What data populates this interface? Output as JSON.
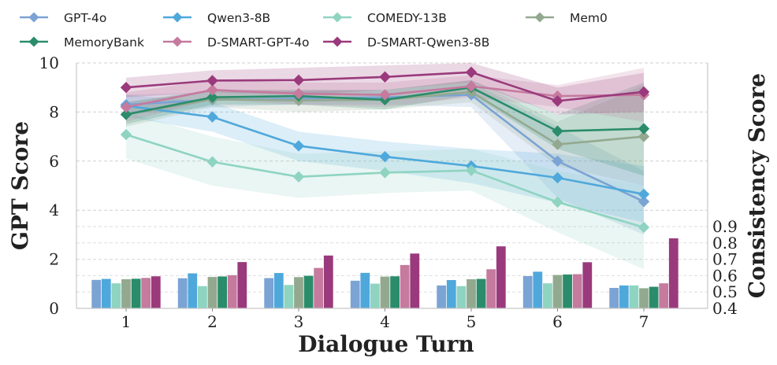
{
  "chart_data": {
    "type": "line+bar",
    "xlabel": "Dialogue Turn",
    "ylabel": "GPT Score",
    "y2label": "Consistency Score",
    "x": [
      1,
      2,
      3,
      4,
      5,
      6,
      7
    ],
    "ylim": [
      0,
      10
    ],
    "yticks": [
      0,
      2,
      4,
      6,
      8,
      10
    ],
    "y2lim": [
      0.4,
      0.9
    ],
    "y2ticks": [
      0.4,
      0.5,
      0.6,
      0.7,
      0.8,
      0.9
    ],
    "grid": true,
    "legend_position": "top",
    "series": [
      {
        "name": "GPT-4o",
        "color": "#7ba3d4",
        "gpt": [
          8.3,
          8.5,
          8.55,
          8.6,
          8.7,
          6.0,
          4.35
        ],
        "band": [
          [
            7.9,
            8.7
          ],
          [
            8.2,
            8.8
          ],
          [
            8.3,
            8.85
          ],
          [
            8.3,
            8.9
          ],
          [
            8.2,
            9.2
          ],
          [
            4.5,
            7.4
          ],
          [
            3.0,
            5.6
          ]
        ],
        "consistency": [
          0.574,
          0.584,
          0.585,
          0.569,
          0.54,
          0.597,
          0.525
        ]
      },
      {
        "name": "Qwen3-8B",
        "color": "#4fa8db",
        "gpt": [
          8.25,
          7.8,
          6.62,
          6.18,
          5.8,
          5.32,
          4.65
        ],
        "band": [
          [
            7.8,
            8.7
          ],
          [
            7.2,
            8.4
          ],
          [
            6.0,
            7.2
          ],
          [
            5.6,
            6.8
          ],
          [
            5.1,
            6.5
          ],
          [
            4.3,
            6.3
          ],
          [
            3.5,
            5.8
          ]
        ],
        "consistency": [
          0.58,
          0.614,
          0.616,
          0.617,
          0.573,
          0.624,
          0.54
        ]
      },
      {
        "name": "COMEDY-13B",
        "color": "#8fd4c1",
        "gpt": [
          7.08,
          5.97,
          5.36,
          5.53,
          5.62,
          4.33,
          3.3
        ],
        "band": [
          [
            6.1,
            8.0
          ],
          [
            5.0,
            7.0
          ],
          [
            4.5,
            6.3
          ],
          [
            4.7,
            6.4
          ],
          [
            4.8,
            6.5
          ],
          [
            3.1,
            5.6
          ],
          [
            1.6,
            5.0
          ]
        ],
        "consistency": [
          0.553,
          0.536,
          0.543,
          0.551,
          0.536,
          0.553,
          0.54
        ]
      },
      {
        "name": "Mem0",
        "color": "#93a98f",
        "gpt": [
          7.9,
          8.52,
          8.47,
          8.5,
          8.82,
          6.68,
          7.0
        ],
        "band": [
          [
            7.4,
            8.4
          ],
          [
            8.2,
            8.9
          ],
          [
            8.0,
            8.9
          ],
          [
            8.1,
            8.9
          ],
          [
            8.4,
            9.3
          ],
          [
            5.8,
            7.6
          ],
          [
            5.0,
            9.1
          ]
        ],
        "consistency": [
          0.578,
          0.592,
          0.591,
          0.594,
          0.578,
          0.604,
          0.523
        ]
      },
      {
        "name": "MemoryBank",
        "color": "#2a8c6a",
        "gpt": [
          7.9,
          8.6,
          8.65,
          8.5,
          9.0,
          7.22,
          7.32
        ],
        "band": [
          [
            7.5,
            8.4
          ],
          [
            8.3,
            8.9
          ],
          [
            8.3,
            8.9
          ],
          [
            8.1,
            8.9
          ],
          [
            8.7,
            9.3
          ],
          [
            6.5,
            7.9
          ],
          [
            5.4,
            9.2
          ]
        ],
        "consistency": [
          0.581,
          0.595,
          0.599,
          0.596,
          0.58,
          0.607,
          0.532
        ]
      },
      {
        "name": "D-SMART-GPT-4o",
        "color": "#c57a9e",
        "gpt": [
          8.2,
          8.9,
          8.75,
          8.7,
          9.05,
          8.65,
          8.7
        ],
        "band": [
          [
            7.6,
            8.8
          ],
          [
            8.5,
            9.3
          ],
          [
            8.3,
            9.2
          ],
          [
            8.2,
            9.2
          ],
          [
            8.6,
            9.5
          ],
          [
            8.2,
            9.1
          ],
          [
            7.6,
            9.8
          ]
        ],
        "consistency": [
          0.586,
          0.603,
          0.647,
          0.665,
          0.639,
          0.609,
          0.553
        ]
      },
      {
        "name": "D-SMART-Qwen3-8B",
        "color": "#9a3a7c",
        "gpt": [
          9.0,
          9.28,
          9.3,
          9.43,
          9.62,
          8.45,
          8.82
        ],
        "band": [
          [
            8.6,
            9.4
          ],
          [
            8.8,
            9.7
          ],
          [
            8.7,
            9.8
          ],
          [
            8.9,
            9.9
          ],
          [
            9.2,
            10.0
          ],
          [
            7.9,
            9.0
          ],
          [
            8.0,
            9.6
          ]
        ],
        "consistency": [
          0.596,
          0.683,
          0.723,
          0.735,
          0.779,
          0.682,
          0.828
        ]
      }
    ]
  }
}
